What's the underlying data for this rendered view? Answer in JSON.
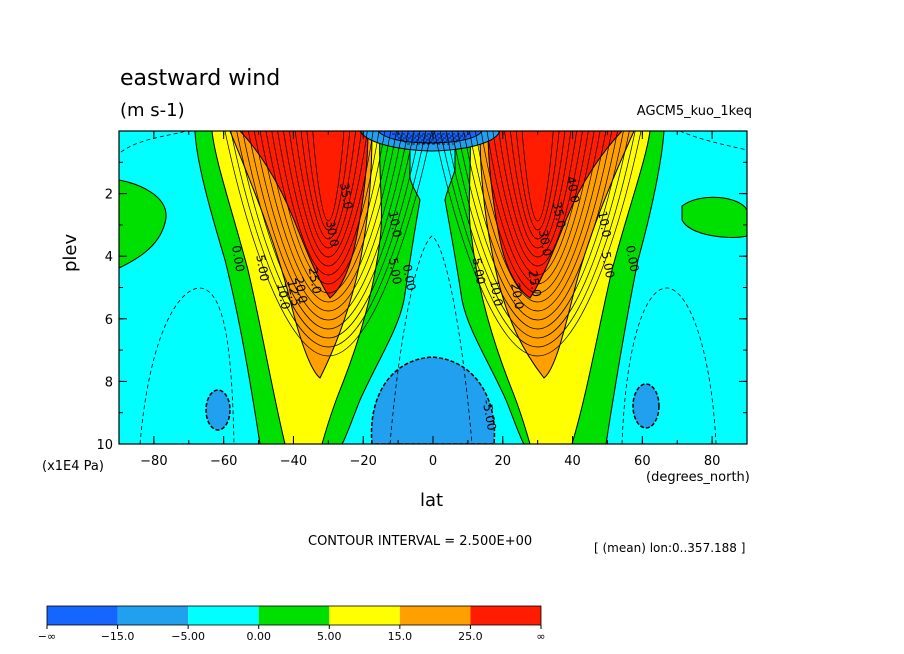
{
  "chart_data": {
    "type": "contour",
    "title": "eastward wind",
    "units": "(m s-1)",
    "run_label": "AGCM5_kuo_1keq",
    "xlabel": "lat",
    "x_unit_label": "(degrees_north)",
    "ylabel": "plev",
    "y_unit_label": "(x1E4 Pa)",
    "xlim": [
      -90,
      90
    ],
    "ylim": [
      0,
      10
    ],
    "y_reversed": true,
    "x_ticks": [
      -80,
      -60,
      -40,
      -20,
      0,
      20,
      40,
      60,
      80
    ],
    "x_tick_labels": [
      "−80",
      "−60",
      "−40",
      "−20",
      "0",
      "20",
      "40",
      "60",
      "80"
    ],
    "y_ticks": [
      2,
      4,
      6,
      8,
      10
    ],
    "y_tick_labels": [
      "2",
      "4",
      "6",
      "8",
      "10"
    ],
    "contour_interval_text": "CONTOUR INTERVAL = 2.500E+00",
    "mean_text": "[ (mean) lon:0..357.188 ]",
    "contour_labels": [
      {
        "text": "0.00",
        "lat": -57,
        "plev": 4.1
      },
      {
        "text": "5.00",
        "lat": -50,
        "plev": 4.4
      },
      {
        "text": "10.0",
        "lat": -44,
        "plev": 5.3
      },
      {
        "text": "12.5",
        "lat": -41,
        "plev": 5.2
      },
      {
        "text": "20.0",
        "lat": -39,
        "plev": 5.1
      },
      {
        "text": "25.0",
        "lat": -35,
        "plev": 4.8
      },
      {
        "text": "30.0",
        "lat": -30,
        "plev": 3.3
      },
      {
        "text": "35.0",
        "lat": -26,
        "plev": 2.1
      },
      {
        "text": "10.0",
        "lat": -12,
        "plev": 3.0
      },
      {
        "text": "5.00",
        "lat": -12,
        "plev": 4.5
      },
      {
        "text": "0.00",
        "lat": -8,
        "plev": 4.7
      },
      {
        "text": "5.00",
        "lat": 12,
        "plev": 4.5
      },
      {
        "text": "10.0",
        "lat": 17,
        "plev": 5.2
      },
      {
        "text": "20.0",
        "lat": 23,
        "plev": 5.3
      },
      {
        "text": "25.0",
        "lat": 28,
        "plev": 4.9
      },
      {
        "text": "30.0",
        "lat": 31,
        "plev": 3.6
      },
      {
        "text": "35.0",
        "lat": 35,
        "plev": 2.7
      },
      {
        "text": "40.0",
        "lat": 39,
        "plev": 1.9
      },
      {
        "text": "10.0",
        "lat": 48,
        "plev": 3.0
      },
      {
        "text": "5.00",
        "lat": 49,
        "plev": 4.3
      },
      {
        "text": "0.00",
        "lat": 56,
        "plev": 4.1
      },
      {
        "text": "-5.00",
        "lat": 15,
        "plev": 9.1
      }
    ],
    "legend": {
      "colors": [
        "#1466ff",
        "#22a0f0",
        "#00ffff",
        "#00e000",
        "#ffff00",
        "#ffa000",
        "#ff1c00"
      ],
      "labels": [
        "−∞",
        "−15.0",
        "−5.00",
        "0.00",
        "5.00",
        "15.0",
        "25.0",
        "∞"
      ]
    }
  }
}
